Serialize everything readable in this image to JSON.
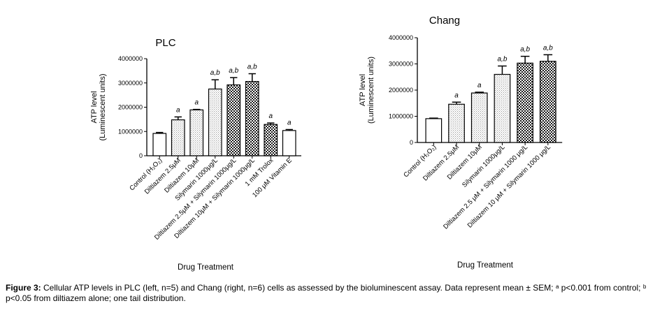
{
  "chart_data": [
    {
      "type": "bar",
      "title": "PLC",
      "ylabel_lines": [
        "ATP level",
        "(Luminescent units)"
      ],
      "xlabel": "Drug Treatment",
      "ylim": [
        0,
        4000000
      ],
      "yticks": [
        "0",
        "1000000",
        "2000000",
        "3000000",
        "4000000"
      ],
      "categories": [
        "Control (H₂O₂)",
        "Diltiazem 2.5μM",
        "Diltiazem 10μM",
        "Silymarin 1000μg/L",
        "Diltiazem 2.5μM + Silymarin 1000μg/L",
        "Diltiazem 10μM + Silymarin 1000μg/L",
        "1 mM Trolox",
        "100 μM Vitamin E"
      ],
      "values": [
        920000,
        1480000,
        1890000,
        2750000,
        2920000,
        3060000,
        1290000,
        1040000
      ],
      "errors": [
        40000,
        120000,
        20000,
        380000,
        300000,
        320000,
        60000,
        40000
      ],
      "significance": [
        "",
        "a",
        "a",
        "a,b",
        "a,b",
        "a,b",
        "a",
        "a"
      ],
      "fills": [
        "white",
        "dots",
        "dots",
        "dots",
        "checker",
        "checker",
        "checker",
        "white"
      ]
    },
    {
      "type": "bar",
      "title": "Chang",
      "ylabel_lines": [
        "ATP level",
        "(Luminescent units)"
      ],
      "xlabel": "Drug Treatment",
      "ylim": [
        0,
        4000000
      ],
      "yticks": [
        "0",
        "1000000",
        "2000000",
        "3000000",
        "4000000"
      ],
      "categories": [
        "Control (H₂O₂)",
        "Diltiazem 2.5μM",
        "Diltiazem 10μM",
        "Silymarin 1000μg/L",
        "Diltiazem 2.5 μM + Silymarin 1000 μg/L",
        "Diltiazem 10 μM + Silymarin 1000 μg/L"
      ],
      "values": [
        910000,
        1460000,
        1890000,
        2600000,
        3030000,
        3100000
      ],
      "errors": [
        20000,
        80000,
        30000,
        320000,
        260000,
        250000
      ],
      "significance": [
        "",
        "a",
        "a",
        "a,b",
        "a,b",
        "a,b"
      ],
      "fills": [
        "white",
        "dots",
        "dots",
        "dots",
        "checker",
        "checker"
      ]
    }
  ],
  "caption": {
    "label": "Figure 3:",
    "text": "Cellular ATP levels in PLC (left, n=5) and Chang (right, n=6) cells as assessed by the bioluminescent assay.  Data represent mean ± SEM; ᵃ p<0.001 from control; ᵇ p<0.05 from diltiazem alone; one tail distribution."
  }
}
